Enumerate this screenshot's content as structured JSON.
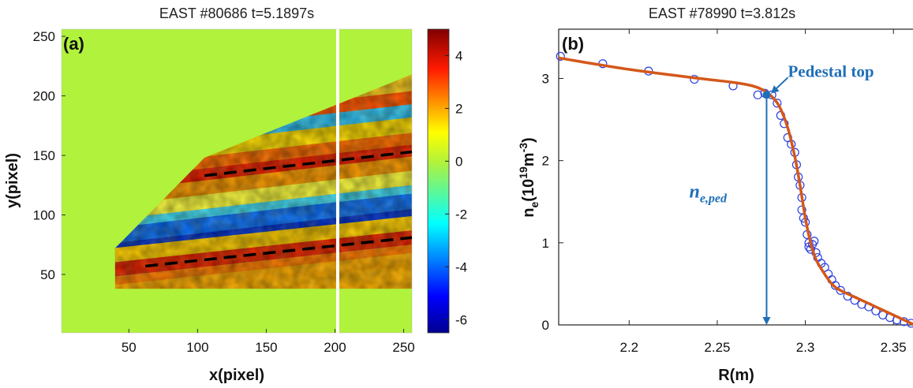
{
  "chart_data": [
    {
      "panel_label": "(a)",
      "type": "heatmap",
      "title": "EAST #80686 t=5.1897s",
      "xlabel": "x(pixel)",
      "ylabel": "y(pixel)",
      "xlim": [
        1,
        256
      ],
      "ylim": [
        1,
        256
      ],
      "x_ticks": [
        50,
        100,
        150,
        200,
        250
      ],
      "y_ticks": [
        50,
        100,
        150,
        200,
        250
      ],
      "colorbar": {
        "range": [
          -6.5,
          5
        ],
        "ticks": [
          4,
          2,
          0,
          -2,
          -4,
          -6
        ],
        "colormap": "jet",
        "zero_color": "#b0f23c"
      },
      "vertical_line": {
        "x": 202,
        "color": "#ffffff"
      },
      "data_region_polygon": [
        [
          40,
          38
        ],
        [
          40,
          72
        ],
        [
          105,
          148
        ],
        [
          256,
          218
        ],
        [
          256,
          38
        ]
      ],
      "dashed_lines": [
        {
          "from": [
            105,
            133
          ],
          "to": [
            256,
            153
          ],
          "color": "#000000"
        },
        {
          "from": [
            62,
            57
          ],
          "to": [
            256,
            81
          ],
          "color": "#000000"
        }
      ]
    },
    {
      "panel_label": "(b)",
      "type": "scatter",
      "title": "EAST #78990 t=3.812s",
      "xlabel": "R(m)",
      "ylabel": "n_e (10^19 m^-3)",
      "ylabel_parts": {
        "main": "n",
        "sub": "e",
        "open": "(10",
        "sup": "19",
        "mid": "m",
        "sup2": "-3",
        "close": ")"
      },
      "xlim": [
        2.16,
        2.362
      ],
      "ylim": [
        0,
        3.6
      ],
      "x_ticks": [
        "2.2",
        "2.25",
        "2.3",
        "2.35"
      ],
      "y_ticks": [
        "0",
        "1",
        "2",
        "3"
      ],
      "series": [
        {
          "kind": "markers",
          "color": "#2a3fe0",
          "points": [
            [
              2.161,
              3.27
            ],
            [
              2.185,
              3.18
            ],
            [
              2.211,
              3.09
            ],
            [
              2.237,
              2.99
            ],
            [
              2.259,
              2.91
            ],
            [
              2.273,
              2.8
            ],
            [
              2.277,
              2.82
            ],
            [
              2.281,
              2.8
            ],
            [
              2.284,
              2.7
            ],
            [
              2.286,
              2.55
            ],
            [
              2.288,
              2.45
            ],
            [
              2.29,
              2.28
            ],
            [
              2.292,
              2.2
            ],
            [
              2.294,
              2.1
            ],
            [
              2.295,
              1.95
            ],
            [
              2.296,
              1.8
            ],
            [
              2.297,
              1.7
            ],
            [
              2.298,
              1.55
            ],
            [
              2.298,
              1.4
            ],
            [
              2.299,
              1.3
            ],
            [
              2.3,
              1.25
            ],
            [
              2.301,
              1.1
            ],
            [
              2.302,
              1.0
            ],
            [
              2.302,
              0.95
            ],
            [
              2.303,
              0.92
            ],
            [
              2.304,
              0.98
            ],
            [
              2.305,
              1.02
            ],
            [
              2.306,
              0.88
            ],
            [
              2.307,
              0.82
            ],
            [
              2.309,
              0.75
            ],
            [
              2.311,
              0.7
            ],
            [
              2.313,
              0.62
            ],
            [
              2.315,
              0.55
            ],
            [
              2.317,
              0.48
            ],
            [
              2.32,
              0.42
            ],
            [
              2.324,
              0.35
            ],
            [
              2.328,
              0.3
            ],
            [
              2.332,
              0.25
            ],
            [
              2.336,
              0.22
            ],
            [
              2.34,
              0.17
            ],
            [
              2.344,
              0.12
            ],
            [
              2.348,
              0.09
            ],
            [
              2.352,
              0.06
            ],
            [
              2.356,
              0.04
            ],
            [
              2.36,
              0.02
            ]
          ]
        },
        {
          "kind": "fit",
          "color": "#d4581a",
          "points": [
            [
              2.16,
              3.25
            ],
            [
              2.2,
              3.11
            ],
            [
              2.24,
              3.0
            ],
            [
              2.26,
              2.95
            ],
            [
              2.27,
              2.91
            ],
            [
              2.276,
              2.86
            ],
            [
              2.28,
              2.8
            ],
            [
              2.285,
              2.67
            ],
            [
              2.29,
              2.4
            ],
            [
              2.294,
              2.05
            ],
            [
              2.297,
              1.7
            ],
            [
              2.3,
              1.3
            ],
            [
              2.303,
              1.0
            ],
            [
              2.306,
              0.8
            ],
            [
              2.31,
              0.65
            ],
            [
              2.315,
              0.5
            ],
            [
              2.32,
              0.42
            ],
            [
              2.33,
              0.32
            ],
            [
              2.34,
              0.22
            ],
            [
              2.35,
              0.12
            ],
            [
              2.362,
              0.0
            ]
          ]
        }
      ],
      "pedestal_top": {
        "label": "Pedestal top",
        "x": 2.278,
        "y": 2.8
      },
      "ne_ped_label": {
        "main": "n",
        "sub": "e,ped"
      },
      "arrow_color": "#1f6fb8"
    }
  ]
}
